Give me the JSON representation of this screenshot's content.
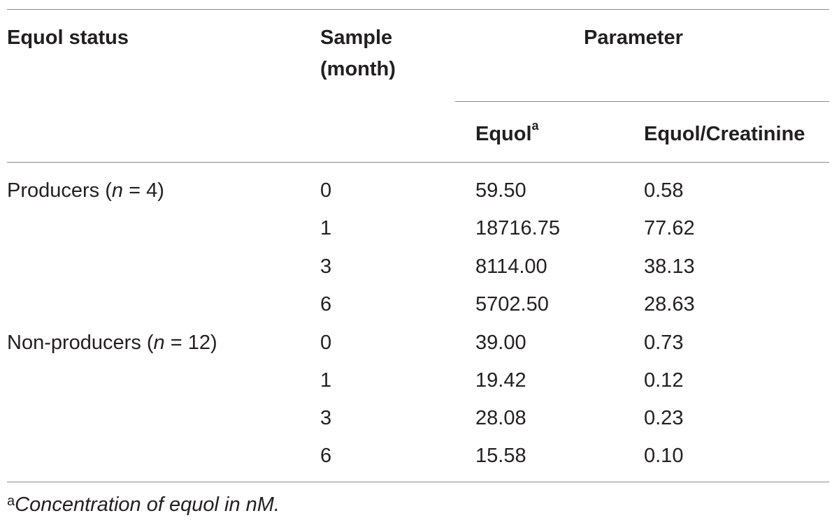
{
  "table": {
    "headers": {
      "status": "Equol status",
      "sample_line1": "Sample",
      "sample_line2": "(month)",
      "parameter": "Parameter",
      "equol": "Equol",
      "equol_note": "a",
      "ratio": "Equol/Creatinine"
    },
    "groups": [
      {
        "name": "Producers (",
        "n_var": "n",
        "n_rest": " = 4)"
      },
      {
        "name": "Non-producers (",
        "n_var": "n",
        "n_rest": " = 12)"
      }
    ],
    "rows": [
      {
        "sample": "0",
        "equol": "59.50",
        "ratio": "0.58"
      },
      {
        "sample": "1",
        "equol": "18716.75",
        "ratio": "77.62"
      },
      {
        "sample": "3",
        "equol": "8114.00",
        "ratio": "38.13"
      },
      {
        "sample": "6",
        "equol": "5702.50",
        "ratio": "28.63"
      },
      {
        "sample": "0",
        "equol": "39.00",
        "ratio": "0.73"
      },
      {
        "sample": "1",
        "equol": "19.42",
        "ratio": "0.12"
      },
      {
        "sample": "3",
        "equol": "28.08",
        "ratio": "0.23"
      },
      {
        "sample": "6",
        "equol": "15.58",
        "ratio": "0.10"
      }
    ]
  },
  "footnote": {
    "mark": "a",
    "text": "Concentration of equol in nM."
  }
}
